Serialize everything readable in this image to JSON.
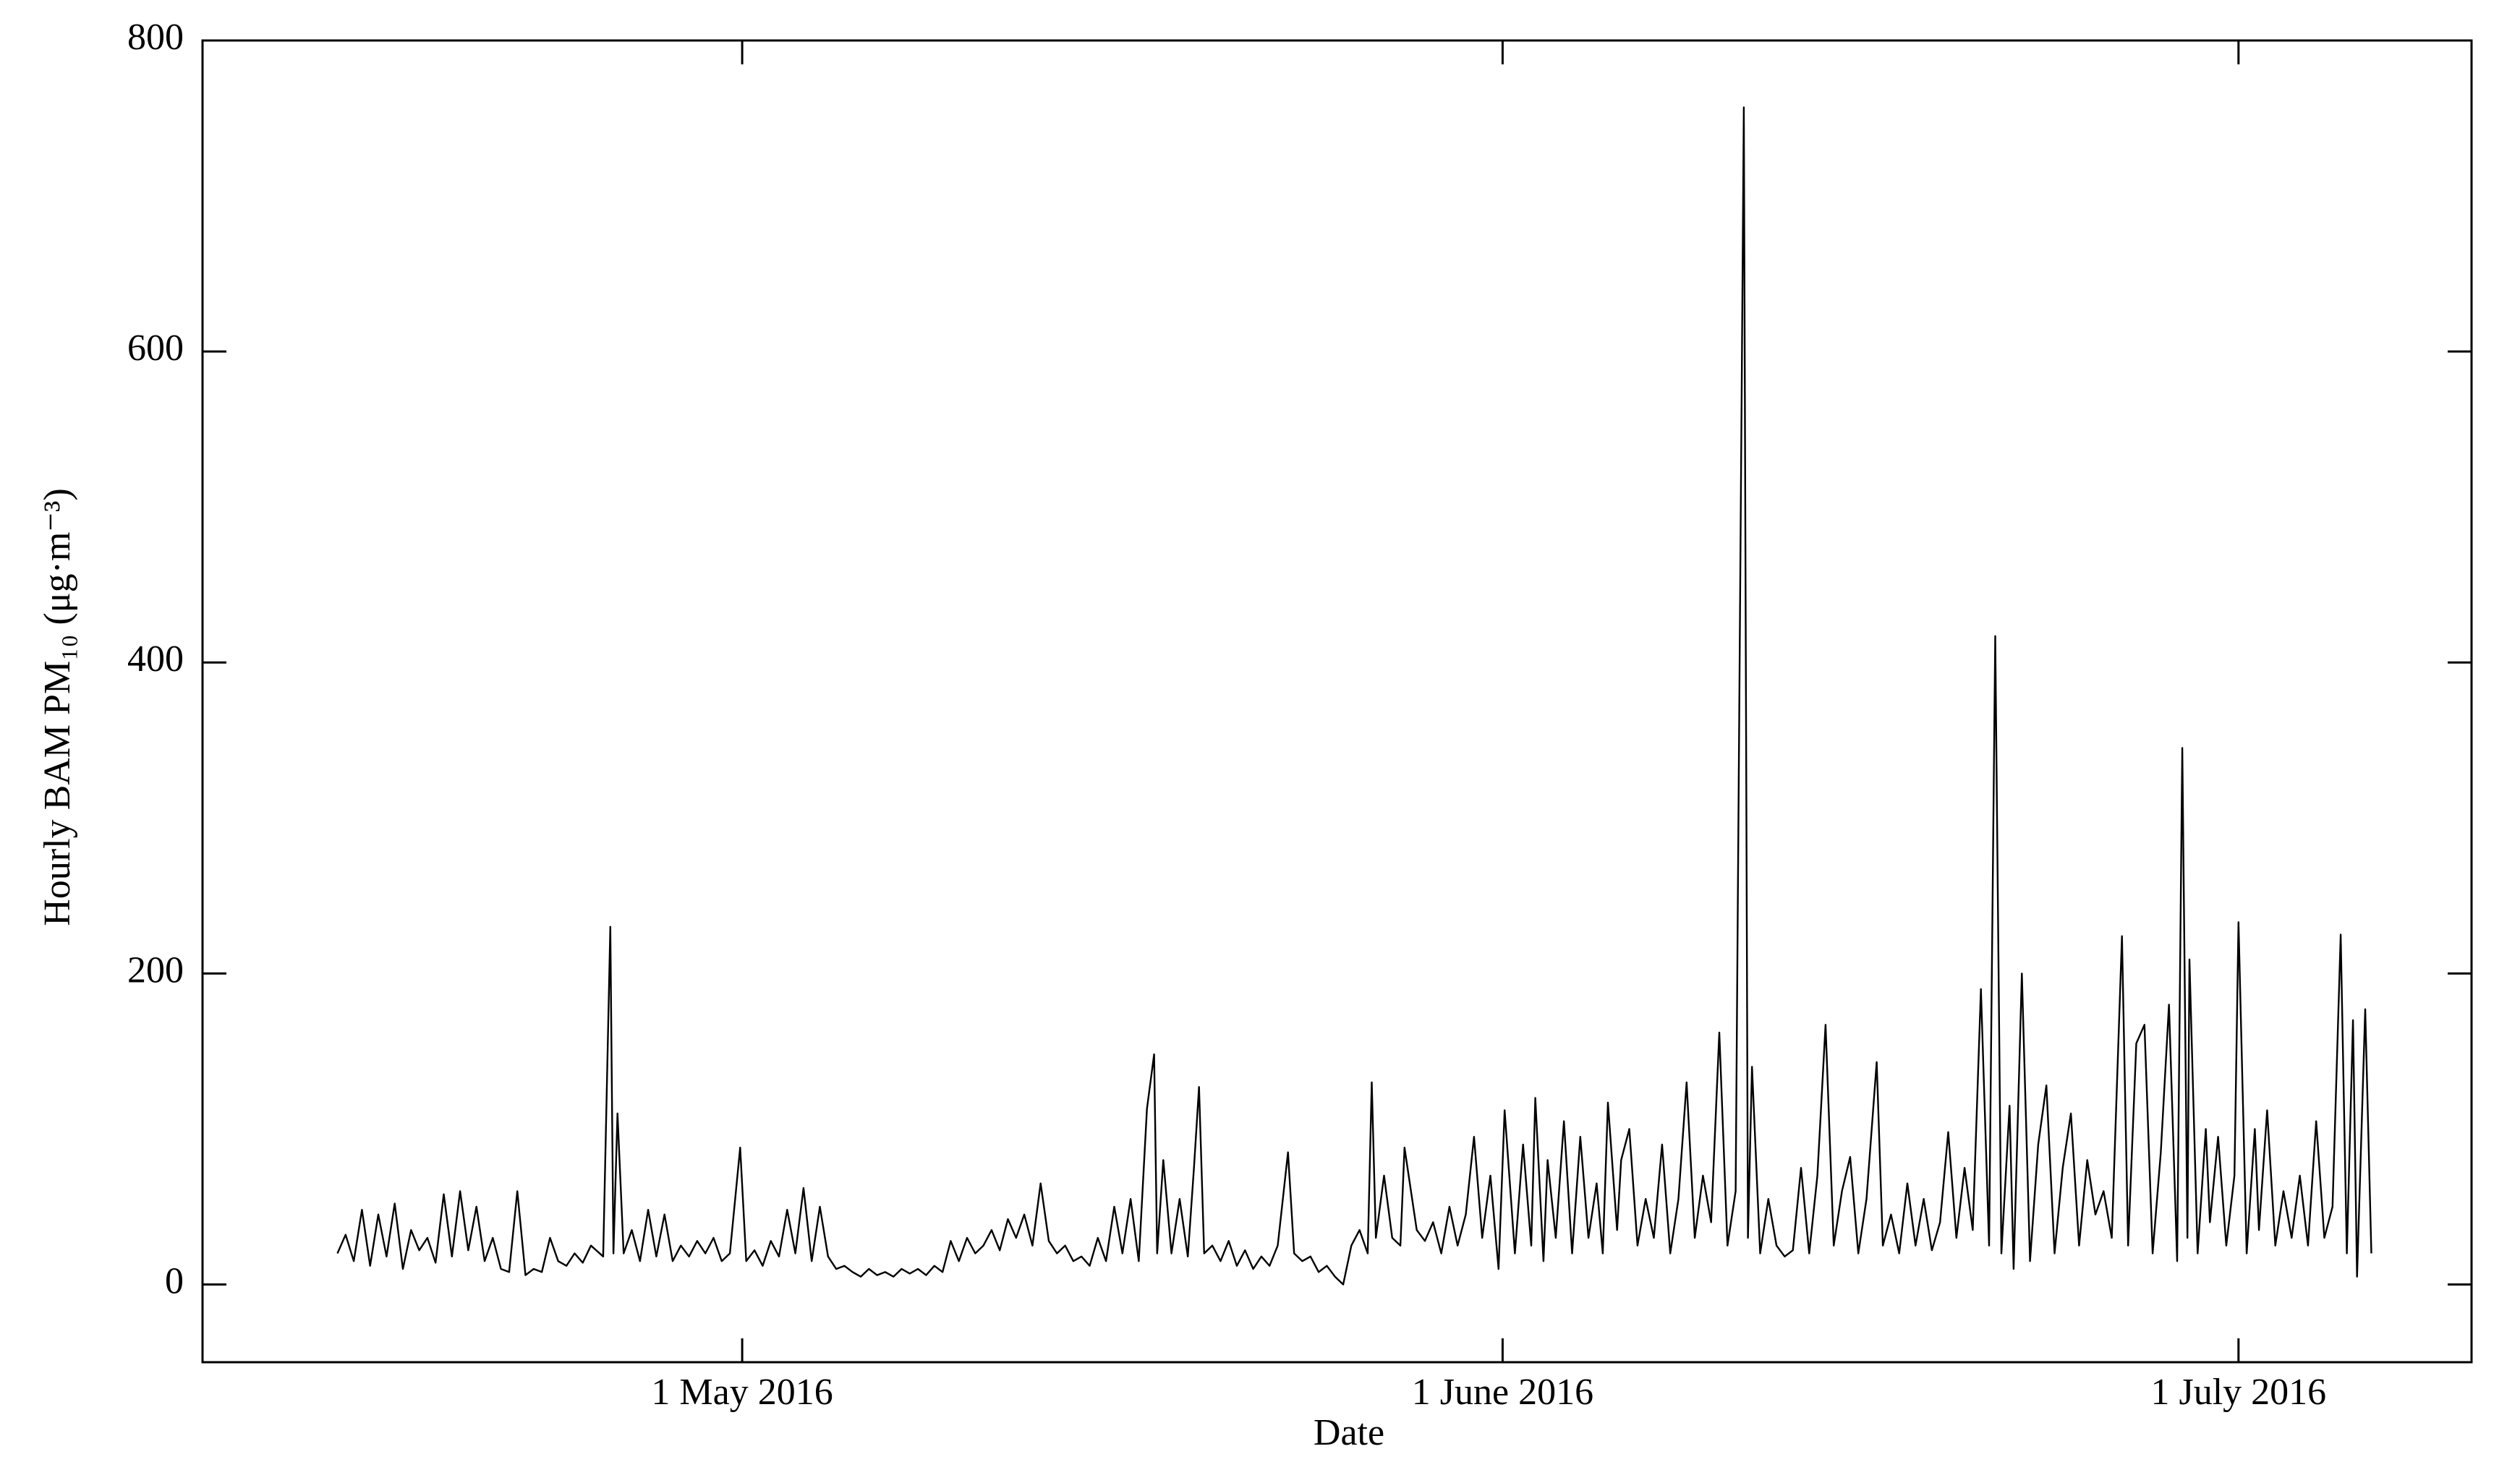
{
  "chart_data": {
    "type": "line",
    "x_label": "Date",
    "y_label": "Hourly BAM PM₁₀ (μg·m⁻³)",
    "color": "#000000",
    "xlim": [
      "2016-04-09 00:00",
      "2016-07-10 12:00"
    ],
    "xticks": [
      {
        "value": "2016-05-01 00:00",
        "label": "1 May 2016"
      },
      {
        "value": "2016-06-01 00:00",
        "label": "1 June 2016"
      },
      {
        "value": "2016-07-01 00:00",
        "label": "1 July 2016"
      }
    ],
    "ylim": [
      -50,
      800
    ],
    "yticks": [
      0,
      200,
      400,
      600,
      800
    ],
    "x": [
      "2016-04-14 12:00",
      "2016-04-14 20:00",
      "2016-04-15 04:00",
      "2016-04-15 12:00",
      "2016-04-15 20:00",
      "2016-04-16 04:00",
      "2016-04-16 12:00",
      "2016-04-16 20:00",
      "2016-04-17 04:00",
      "2016-04-17 12:00",
      "2016-04-17 20:00",
      "2016-04-18 04:00",
      "2016-04-18 12:00",
      "2016-04-18 20:00",
      "2016-04-19 04:00",
      "2016-04-19 12:00",
      "2016-04-19 20:00",
      "2016-04-20 04:00",
      "2016-04-20 12:00",
      "2016-04-20 20:00",
      "2016-04-21 04:00",
      "2016-04-21 12:00",
      "2016-04-21 20:00",
      "2016-04-22 04:00",
      "2016-04-22 12:00",
      "2016-04-22 20:00",
      "2016-04-23 04:00",
      "2016-04-23 12:00",
      "2016-04-23 20:00",
      "2016-04-24 04:00",
      "2016-04-24 12:00",
      "2016-04-24 20:00",
      "2016-04-25 08:00",
      "2016-04-25 15:00",
      "2016-04-25 18:00",
      "2016-04-25 22:00",
      "2016-04-26 04:00",
      "2016-04-26 12:00",
      "2016-04-26 20:00",
      "2016-04-27 04:00",
      "2016-04-27 12:00",
      "2016-04-27 20:00",
      "2016-04-28 04:00",
      "2016-04-28 12:00",
      "2016-04-28 20:00",
      "2016-04-29 04:00",
      "2016-04-29 12:00",
      "2016-04-29 20:00",
      "2016-04-30 04:00",
      "2016-04-30 12:00",
      "2016-04-30 22:00",
      "2016-05-01 04:00",
      "2016-05-01 12:00",
      "2016-05-01 20:00",
      "2016-05-02 04:00",
      "2016-05-02 12:00",
      "2016-05-02 20:00",
      "2016-05-03 04:00",
      "2016-05-03 12:00",
      "2016-05-03 20:00",
      "2016-05-04 04:00",
      "2016-05-04 12:00",
      "2016-05-04 20:00",
      "2016-05-05 04:00",
      "2016-05-05 12:00",
      "2016-05-05 20:00",
      "2016-05-06 04:00",
      "2016-05-06 12:00",
      "2016-05-06 20:00",
      "2016-05-07 04:00",
      "2016-05-07 12:00",
      "2016-05-07 20:00",
      "2016-05-08 04:00",
      "2016-05-08 12:00",
      "2016-05-08 20:00",
      "2016-05-09 04:00",
      "2016-05-09 12:00",
      "2016-05-09 20:00",
      "2016-05-10 04:00",
      "2016-05-10 12:00",
      "2016-05-10 20:00",
      "2016-05-11 04:00",
      "2016-05-11 12:00",
      "2016-05-11 20:00",
      "2016-05-12 04:00",
      "2016-05-12 12:00",
      "2016-05-12 20:00",
      "2016-05-13 04:00",
      "2016-05-13 12:00",
      "2016-05-13 20:00",
      "2016-05-14 04:00",
      "2016-05-14 12:00",
      "2016-05-14 20:00",
      "2016-05-15 04:00",
      "2016-05-15 12:00",
      "2016-05-15 20:00",
      "2016-05-16 04:00",
      "2016-05-16 12:00",
      "2016-05-16 20:00",
      "2016-05-17 04:00",
      "2016-05-17 12:00",
      "2016-05-17 19:00",
      "2016-05-17 22:00",
      "2016-05-18 04:00",
      "2016-05-18 12:00",
      "2016-05-18 20:00",
      "2016-05-19 04:00",
      "2016-05-19 10:00",
      "2016-05-19 15:00",
      "2016-05-19 20:00",
      "2016-05-20 04:00",
      "2016-05-20 12:00",
      "2016-05-20 20:00",
      "2016-05-21 04:00",
      "2016-05-21 12:00",
      "2016-05-21 20:00",
      "2016-05-22 04:00",
      "2016-05-22 12:00",
      "2016-05-22 20:00",
      "2016-05-23 06:00",
      "2016-05-23 12:00",
      "2016-05-23 20:00",
      "2016-05-24 04:00",
      "2016-05-24 12:00",
      "2016-05-24 20:00",
      "2016-05-25 04:00",
      "2016-05-25 12:00",
      "2016-05-25 20:00",
      "2016-05-26 04:00",
      "2016-05-26 12:00",
      "2016-05-26 16:00",
      "2016-05-26 20:00",
      "2016-05-27 04:00",
      "2016-05-27 12:00",
      "2016-05-27 20:00",
      "2016-05-28 00:00",
      "2016-05-28 12:00",
      "2016-05-28 20:00",
      "2016-05-29 04:00",
      "2016-05-29 12:00",
      "2016-05-29 20:00",
      "2016-05-30 04:00",
      "2016-05-30 12:00",
      "2016-05-30 20:00",
      "2016-05-31 04:00",
      "2016-05-31 12:00",
      "2016-05-31 20:00",
      "2016-06-01 02:00",
      "2016-06-01 12:00",
      "2016-06-01 20:00",
      "2016-06-02 04:00",
      "2016-06-02 08:00",
      "2016-06-02 16:00",
      "2016-06-02 20:00",
      "2016-06-03 04:00",
      "2016-06-03 12:00",
      "2016-06-03 20:00",
      "2016-06-04 04:00",
      "2016-06-04 12:00",
      "2016-06-04 20:00",
      "2016-06-05 02:00",
      "2016-06-05 07:00",
      "2016-06-05 16:00",
      "2016-06-05 20:00",
      "2016-06-06 04:00",
      "2016-06-06 12:00",
      "2016-06-06 20:00",
      "2016-06-07 04:00",
      "2016-06-07 12:00",
      "2016-06-07 20:00",
      "2016-06-08 04:00",
      "2016-06-08 12:00",
      "2016-06-08 20:00",
      "2016-06-09 04:00",
      "2016-06-09 12:00",
      "2016-06-09 20:00",
      "2016-06-10 04:00",
      "2016-06-10 12:00",
      "2016-06-10 20:00",
      "2016-06-11 00:00",
      "2016-06-11 04:00",
      "2016-06-11 12:00",
      "2016-06-11 20:00",
      "2016-06-12 04:00",
      "2016-06-12 12:00",
      "2016-06-12 20:00",
      "2016-06-13 04:00",
      "2016-06-13 12:00",
      "2016-06-13 20:00",
      "2016-06-14 04:00",
      "2016-06-14 12:00",
      "2016-06-14 20:00",
      "2016-06-15 04:00",
      "2016-06-15 12:00",
      "2016-06-15 20:00",
      "2016-06-16 06:00",
      "2016-06-16 12:00",
      "2016-06-16 20:00",
      "2016-06-17 04:00",
      "2016-06-17 12:00",
      "2016-06-17 20:00",
      "2016-06-18 04:00",
      "2016-06-18 12:00",
      "2016-06-18 20:00",
      "2016-06-19 04:00",
      "2016-06-19 12:00",
      "2016-06-19 20:00",
      "2016-06-20 04:00",
      "2016-06-20 12:00",
      "2016-06-20 20:00",
      "2016-06-21 02:00",
      "2016-06-21 08:00",
      "2016-06-21 16:00",
      "2016-06-21 20:00",
      "2016-06-22 04:00",
      "2016-06-22 12:00",
      "2016-06-22 20:00",
      "2016-06-23 04:00",
      "2016-06-23 12:00",
      "2016-06-23 20:00",
      "2016-06-24 04:00",
      "2016-06-24 12:00",
      "2016-06-24 20:00",
      "2016-06-25 04:00",
      "2016-06-25 12:00",
      "2016-06-25 20:00",
      "2016-06-26 06:00",
      "2016-06-26 12:00",
      "2016-06-26 20:00",
      "2016-06-27 04:00",
      "2016-06-27 12:00",
      "2016-06-27 20:00",
      "2016-06-28 04:00",
      "2016-06-28 12:00",
      "2016-06-28 17:00",
      "2016-06-28 22:00",
      "2016-06-29 00:00",
      "2016-06-29 08:00",
      "2016-06-29 16:00",
      "2016-06-29 20:00",
      "2016-06-30 04:00",
      "2016-06-30 12:00",
      "2016-06-30 20:00",
      "2016-07-01 00:00",
      "2016-07-01 08:00",
      "2016-07-01 16:00",
      "2016-07-01 20:00",
      "2016-07-02 04:00",
      "2016-07-02 12:00",
      "2016-07-02 20:00",
      "2016-07-03 04:00",
      "2016-07-03 12:00",
      "2016-07-03 20:00",
      "2016-07-04 04:00",
      "2016-07-04 12:00",
      "2016-07-04 20:00",
      "2016-07-05 04:00",
      "2016-07-05 10:00",
      "2016-07-05 16:00",
      "2016-07-05 20:00",
      "2016-07-06 04:00",
      "2016-07-06 10:00"
    ],
    "values": [
      20,
      32,
      15,
      48,
      12,
      45,
      18,
      52,
      10,
      35,
      22,
      30,
      14,
      58,
      18,
      60,
      22,
      50,
      15,
      30,
      10,
      8,
      60,
      6,
      10,
      8,
      30,
      15,
      12,
      20,
      14,
      25,
      18,
      230,
      20,
      110,
      20,
      35,
      15,
      48,
      18,
      45,
      15,
      25,
      18,
      28,
      20,
      30,
      15,
      20,
      88,
      15,
      22,
      12,
      28,
      18,
      48,
      20,
      62,
      15,
      50,
      18,
      10,
      12,
      8,
      5,
      10,
      6,
      8,
      5,
      10,
      7,
      10,
      6,
      12,
      8,
      28,
      15,
      30,
      20,
      25,
      35,
      22,
      42,
      30,
      45,
      25,
      65,
      28,
      20,
      25,
      15,
      18,
      12,
      30,
      15,
      50,
      20,
      55,
      15,
      113,
      148,
      20,
      80,
      20,
      55,
      18,
      75,
      127,
      20,
      25,
      15,
      28,
      12,
      22,
      10,
      18,
      12,
      25,
      85,
      20,
      15,
      18,
      8,
      12,
      5,
      0,
      25,
      35,
      20,
      130,
      30,
      70,
      30,
      25,
      88,
      35,
      28,
      40,
      20,
      50,
      25,
      45,
      95,
      30,
      70,
      10,
      112,
      20,
      90,
      25,
      120,
      15,
      80,
      30,
      105,
      20,
      95,
      30,
      65,
      20,
      117,
      35,
      80,
      100,
      25,
      55,
      30,
      90,
      20,
      55,
      130,
      30,
      70,
      40,
      162,
      25,
      60,
      757,
      30,
      140,
      20,
      55,
      25,
      18,
      22,
      75,
      20,
      70,
      167,
      25,
      60,
      82,
      20,
      55,
      143,
      25,
      45,
      20,
      65,
      25,
      55,
      22,
      40,
      98,
      30,
      75,
      35,
      190,
      25,
      417,
      20,
      115,
      10,
      200,
      15,
      90,
      128,
      20,
      75,
      110,
      25,
      80,
      45,
      60,
      30,
      224,
      25,
      155,
      167,
      20,
      85,
      180,
      15,
      345,
      30,
      209,
      20,
      100,
      40,
      95,
      25,
      70,
      233,
      20,
      100,
      35,
      112,
      25,
      60,
      30,
      70,
      25,
      105,
      30,
      50,
      225,
      20,
      170,
      5,
      177,
      20
    ]
  }
}
